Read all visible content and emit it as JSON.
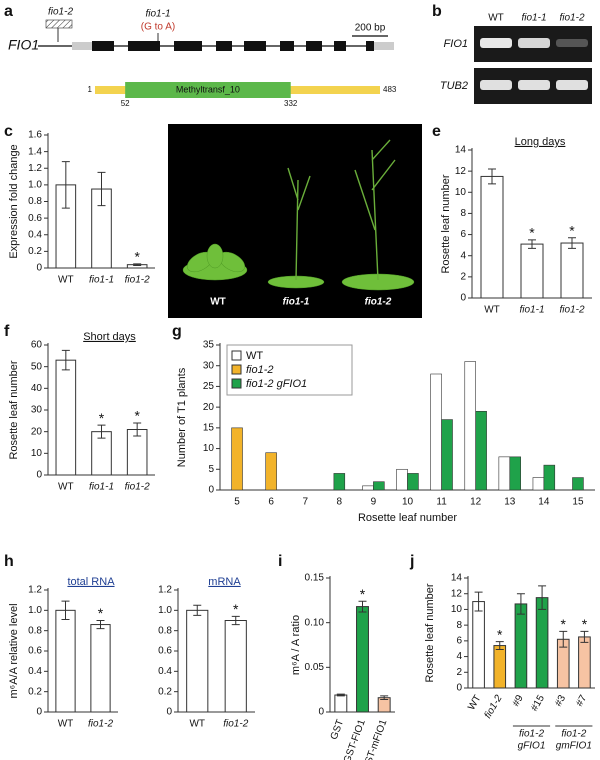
{
  "gene_diagram": {
    "panel": "a",
    "gene": "FIO1",
    "mutant_a": "fio1-2",
    "mutant_b": "fio1-1",
    "mutation": "(G to A)",
    "scale": "200 bp",
    "protein": {
      "start": 1,
      "domain_start": 52,
      "domain_end": 332,
      "end": 483,
      "domain": "Methyltransf_10"
    }
  },
  "gel": {
    "panel": "b",
    "columns": [
      "WT",
      "fio1-1",
      "fio1-2"
    ],
    "rows": [
      "FIO1",
      "TUB2"
    ]
  },
  "photo": {
    "panel": "d",
    "labels": [
      "WT",
      "fio1-1",
      "fio1-2"
    ]
  },
  "chart_data": [
    {
      "type": "bar",
      "panel": "c",
      "ylabel": "Expression fold change",
      "categories": [
        "WT",
        "fio1-1",
        "fio1-2"
      ],
      "values": [
        1.0,
        0.95,
        0.04
      ],
      "errors": [
        0.28,
        0.2,
        0.01
      ],
      "significance": [
        null,
        null,
        "*"
      ],
      "color": "#ffffff",
      "ylim": [
        0,
        1.6
      ],
      "yticks": [
        0,
        0.2,
        0.4,
        0.6,
        0.8,
        {
          "value": 1,
          "label": "1.0"
        },
        1.2,
        1.4,
        1.6
      ]
    },
    {
      "type": "bar",
      "panel": "e",
      "subtitle": "Long days",
      "ylabel": "Rosette leaf number",
      "categories": [
        "WT",
        "fio1-1",
        "fio1-2"
      ],
      "values": [
        11.5,
        5.1,
        5.2
      ],
      "errors": [
        0.7,
        0.4,
        0.5
      ],
      "significance": [
        null,
        "*",
        "*"
      ],
      "color": "#ffffff",
      "ylim": [
        0,
        14
      ],
      "yticks": [
        0,
        2,
        4,
        6,
        8,
        10,
        12,
        14
      ]
    },
    {
      "type": "bar",
      "panel": "f",
      "subtitle": "Short days",
      "ylabel": "Rosette leaf number",
      "categories": [
        "WT",
        "fio1-1",
        "fio1-2"
      ],
      "values": [
        53,
        20,
        21
      ],
      "errors": [
        4.5,
        3,
        3
      ],
      "significance": [
        null,
        "*",
        "*"
      ],
      "color": "#ffffff",
      "ylim": [
        0,
        60
      ],
      "yticks": [
        0,
        10,
        20,
        30,
        40,
        50,
        60
      ]
    },
    {
      "type": "grouped_bar",
      "panel": "g",
      "ylabel": "Number of T1 plants",
      "xlabel": "Rosette leaf number",
      "categories": [
        "5",
        "6",
        "7",
        "8",
        "9",
        "10",
        "11",
        "12",
        "13",
        "14",
        "15"
      ],
      "series": [
        {
          "name": "WT",
          "color": "#ffffff",
          "values": [
            0,
            0,
            0,
            0,
            1,
            5,
            28,
            31,
            8,
            3,
            0
          ]
        },
        {
          "name": "fio1-2",
          "color": "#f2b32a",
          "values": [
            15,
            9,
            0,
            0,
            0,
            0,
            0,
            0,
            0,
            0,
            0
          ]
        },
        {
          "name": "fio1-2 gFIO1",
          "color": "#1fa24a",
          "values": [
            0,
            0,
            0,
            4,
            2,
            4,
            17,
            19,
            8,
            6,
            3
          ]
        }
      ],
      "ylim": [
        0,
        35
      ],
      "yticks": [
        0,
        5,
        10,
        15,
        20,
        25,
        30,
        35
      ],
      "legend": "upper-left"
    },
    {
      "type": "bar",
      "panel": "h",
      "subtitle": "total RNA",
      "ylabel": "m⁶A/A relative level",
      "categories": [
        "WT",
        "fio1-2"
      ],
      "values": [
        1.0,
        0.86
      ],
      "errors": [
        0.09,
        0.04
      ],
      "significance": [
        null,
        "*"
      ],
      "color": "#ffffff",
      "ylim": [
        0,
        1.2
      ],
      "yticks": [
        0,
        0.2,
        0.4,
        0.6,
        0.8,
        {
          "value": 1,
          "label": "1.0"
        },
        1.2
      ]
    },
    {
      "type": "bar",
      "subtitle": "mRNA",
      "categories": [
        "WT",
        "fio1-2"
      ],
      "values": [
        1.0,
        0.9
      ],
      "errors": [
        0.05,
        0.04
      ],
      "significance": [
        null,
        "*"
      ],
      "color": "#ffffff",
      "ylim": [
        0,
        1.2
      ],
      "yticks": [
        0,
        0.2,
        0.4,
        0.6,
        0.8,
        {
          "value": 1,
          "label": "1.0"
        },
        1.2
      ]
    },
    {
      "type": "bar",
      "panel": "i",
      "ylabel": "m⁶A / A ratio",
      "categories": [
        "GST",
        "GST-FIO1",
        "GST-mFIO1"
      ],
      "values": [
        0.019,
        0.118,
        0.016
      ],
      "errors": [
        0.001,
        0.006,
        0.002
      ],
      "significance": [
        null,
        "*",
        null
      ],
      "colors": [
        "#ffffff",
        "#1fa24a",
        "#f6c3a3"
      ],
      "ylim": [
        0,
        0.15
      ],
      "yticks": [
        0,
        0.05,
        {
          "value": 0.1,
          "label": "0.10"
        },
        0.15
      ]
    },
    {
      "type": "bar",
      "panel": "j",
      "ylabel": "Rosette leaf number",
      "categories": [
        "WT",
        "fio1-2",
        "#9",
        "#15",
        "#3",
        "#7"
      ],
      "values": [
        11,
        5.4,
        10.7,
        11.5,
        6.2,
        6.5
      ],
      "errors": [
        1.2,
        0.5,
        1.3,
        1.5,
        1.0,
        0.7
      ],
      "significance": [
        null,
        "*",
        null,
        null,
        "*",
        "*"
      ],
      "colors": [
        "#ffffff",
        "#f2b32a",
        "#1fa24a",
        "#1fa24a",
        "#f6c3a3",
        "#f6c3a3"
      ],
      "group_labels": [
        [
          "fio1-2",
          "gFIO1"
        ],
        [
          "fio1-2",
          "gmFIO1"
        ]
      ],
      "ylim": [
        0,
        14
      ],
      "yticks": [
        0,
        2,
        4,
        6,
        8,
        10,
        12,
        14
      ]
    }
  ]
}
